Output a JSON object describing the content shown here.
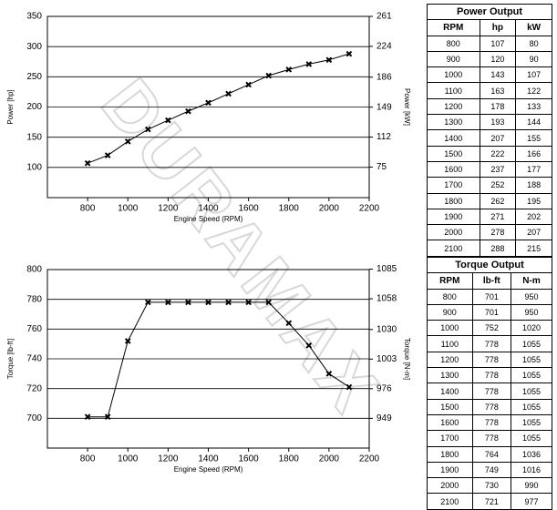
{
  "watermark": "DURAMAX",
  "chart_data": [
    {
      "type": "line",
      "x": [
        800,
        900,
        1000,
        1100,
        1200,
        1300,
        1400,
        1500,
        1600,
        1700,
        1800,
        1900,
        2000,
        2100
      ],
      "values": [
        107,
        120,
        143,
        163,
        178,
        193,
        207,
        222,
        237,
        252,
        262,
        271,
        278,
        288
      ],
      "color": "#000000",
      "xlabel": "Engine Speed (RPM)",
      "ylabel": "Power [hp]",
      "y2label": "Power [kW]",
      "xlim": [
        600,
        2200
      ],
      "xticks": [
        800,
        1000,
        1200,
        1400,
        1600,
        1800,
        2000,
        2200
      ],
      "ylim": [
        50,
        350
      ],
      "yticks": [
        100,
        150,
        200,
        250,
        300,
        350
      ],
      "y2lim": [
        37.3,
        261
      ],
      "y2ticks": [
        75,
        112,
        149,
        186,
        224,
        261
      ],
      "grid": true
    },
    {
      "type": "line",
      "x": [
        800,
        900,
        1000,
        1100,
        1200,
        1300,
        1400,
        1500,
        1600,
        1700,
        1800,
        1900,
        2000,
        2100
      ],
      "values": [
        701,
        701,
        752,
        778,
        778,
        778,
        778,
        778,
        778,
        778,
        764,
        749,
        730,
        721
      ],
      "color": "#000000",
      "xlabel": "Engine Speed (RPM)",
      "ylabel": "Torque [lb-ft]",
      "y2label": "Torque [N-m]",
      "xlim": [
        600,
        2200
      ],
      "xticks": [
        800,
        1000,
        1200,
        1400,
        1600,
        1800,
        2000,
        2200
      ],
      "ylim": [
        680,
        800
      ],
      "yticks": [
        700,
        720,
        740,
        760,
        780,
        800
      ],
      "y2lim": [
        921.9,
        1084.6
      ],
      "y2ticks": [
        949,
        976,
        1003,
        1030,
        1058,
        1085
      ],
      "grid": true
    }
  ],
  "tables": [
    {
      "title": "Power Output",
      "columns": [
        "RPM",
        "hp",
        "kW"
      ],
      "rows": [
        [
          800,
          107,
          80
        ],
        [
          900,
          120,
          90
        ],
        [
          1000,
          143,
          107
        ],
        [
          1100,
          163,
          122
        ],
        [
          1200,
          178,
          133
        ],
        [
          1300,
          193,
          144
        ],
        [
          1400,
          207,
          155
        ],
        [
          1500,
          222,
          166
        ],
        [
          1600,
          237,
          177
        ],
        [
          1700,
          252,
          188
        ],
        [
          1800,
          262,
          195
        ],
        [
          1900,
          271,
          202
        ],
        [
          2000,
          278,
          207
        ],
        [
          2100,
          288,
          215
        ]
      ]
    },
    {
      "title": "Torque Output",
      "columns": [
        "RPM",
        "lb-ft",
        "N-m"
      ],
      "rows": [
        [
          800,
          701,
          950
        ],
        [
          900,
          701,
          950
        ],
        [
          1000,
          752,
          1020
        ],
        [
          1100,
          778,
          1055
        ],
        [
          1200,
          778,
          1055
        ],
        [
          1300,
          778,
          1055
        ],
        [
          1400,
          778,
          1055
        ],
        [
          1500,
          778,
          1055
        ],
        [
          1600,
          778,
          1055
        ],
        [
          1700,
          778,
          1055
        ],
        [
          1800,
          764,
          1036
        ],
        [
          1900,
          749,
          1016
        ],
        [
          2000,
          730,
          990
        ],
        [
          2100,
          721,
          977
        ]
      ]
    }
  ]
}
